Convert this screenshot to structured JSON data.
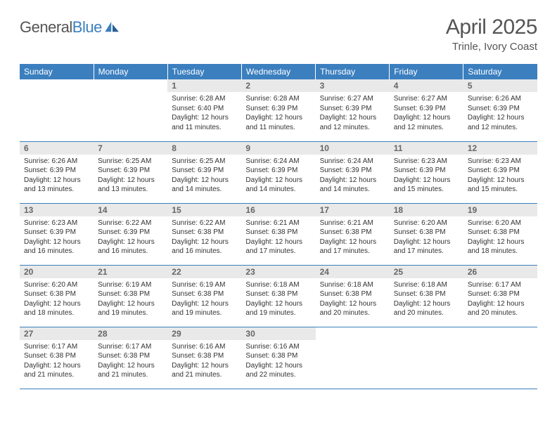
{
  "logo": {
    "general": "General",
    "blue": "Blue"
  },
  "title": "April 2025",
  "location": "Trinle, Ivory Coast",
  "columns": [
    "Sunday",
    "Monday",
    "Tuesday",
    "Wednesday",
    "Thursday",
    "Friday",
    "Saturday"
  ],
  "colors": {
    "header_bg": "#3b7fbf",
    "header_fg": "#ffffff",
    "daynum_bg": "#e9e9e9",
    "daynum_fg": "#666666",
    "border": "#3b7fbf",
    "text": "#333333",
    "title": "#555555",
    "page_bg": "#ffffff"
  },
  "fonts": {
    "title_size": 30,
    "location_size": 15,
    "header_size": 12,
    "daynum_size": 12,
    "body_size": 10
  },
  "weeks": [
    [
      {
        "n": "",
        "sr": "",
        "ss": "",
        "dl": ""
      },
      {
        "n": "",
        "sr": "",
        "ss": "",
        "dl": ""
      },
      {
        "n": "1",
        "sr": "Sunrise: 6:28 AM",
        "ss": "Sunset: 6:40 PM",
        "dl": "Daylight: 12 hours and 11 minutes."
      },
      {
        "n": "2",
        "sr": "Sunrise: 6:28 AM",
        "ss": "Sunset: 6:39 PM",
        "dl": "Daylight: 12 hours and 11 minutes."
      },
      {
        "n": "3",
        "sr": "Sunrise: 6:27 AM",
        "ss": "Sunset: 6:39 PM",
        "dl": "Daylight: 12 hours and 12 minutes."
      },
      {
        "n": "4",
        "sr": "Sunrise: 6:27 AM",
        "ss": "Sunset: 6:39 PM",
        "dl": "Daylight: 12 hours and 12 minutes."
      },
      {
        "n": "5",
        "sr": "Sunrise: 6:26 AM",
        "ss": "Sunset: 6:39 PM",
        "dl": "Daylight: 12 hours and 12 minutes."
      }
    ],
    [
      {
        "n": "6",
        "sr": "Sunrise: 6:26 AM",
        "ss": "Sunset: 6:39 PM",
        "dl": "Daylight: 12 hours and 13 minutes."
      },
      {
        "n": "7",
        "sr": "Sunrise: 6:25 AM",
        "ss": "Sunset: 6:39 PM",
        "dl": "Daylight: 12 hours and 13 minutes."
      },
      {
        "n": "8",
        "sr": "Sunrise: 6:25 AM",
        "ss": "Sunset: 6:39 PM",
        "dl": "Daylight: 12 hours and 14 minutes."
      },
      {
        "n": "9",
        "sr": "Sunrise: 6:24 AM",
        "ss": "Sunset: 6:39 PM",
        "dl": "Daylight: 12 hours and 14 minutes."
      },
      {
        "n": "10",
        "sr": "Sunrise: 6:24 AM",
        "ss": "Sunset: 6:39 PM",
        "dl": "Daylight: 12 hours and 14 minutes."
      },
      {
        "n": "11",
        "sr": "Sunrise: 6:23 AM",
        "ss": "Sunset: 6:39 PM",
        "dl": "Daylight: 12 hours and 15 minutes."
      },
      {
        "n": "12",
        "sr": "Sunrise: 6:23 AM",
        "ss": "Sunset: 6:39 PM",
        "dl": "Daylight: 12 hours and 15 minutes."
      }
    ],
    [
      {
        "n": "13",
        "sr": "Sunrise: 6:23 AM",
        "ss": "Sunset: 6:39 PM",
        "dl": "Daylight: 12 hours and 16 minutes."
      },
      {
        "n": "14",
        "sr": "Sunrise: 6:22 AM",
        "ss": "Sunset: 6:39 PM",
        "dl": "Daylight: 12 hours and 16 minutes."
      },
      {
        "n": "15",
        "sr": "Sunrise: 6:22 AM",
        "ss": "Sunset: 6:38 PM",
        "dl": "Daylight: 12 hours and 16 minutes."
      },
      {
        "n": "16",
        "sr": "Sunrise: 6:21 AM",
        "ss": "Sunset: 6:38 PM",
        "dl": "Daylight: 12 hours and 17 minutes."
      },
      {
        "n": "17",
        "sr": "Sunrise: 6:21 AM",
        "ss": "Sunset: 6:38 PM",
        "dl": "Daylight: 12 hours and 17 minutes."
      },
      {
        "n": "18",
        "sr": "Sunrise: 6:20 AM",
        "ss": "Sunset: 6:38 PM",
        "dl": "Daylight: 12 hours and 17 minutes."
      },
      {
        "n": "19",
        "sr": "Sunrise: 6:20 AM",
        "ss": "Sunset: 6:38 PM",
        "dl": "Daylight: 12 hours and 18 minutes."
      }
    ],
    [
      {
        "n": "20",
        "sr": "Sunrise: 6:20 AM",
        "ss": "Sunset: 6:38 PM",
        "dl": "Daylight: 12 hours and 18 minutes."
      },
      {
        "n": "21",
        "sr": "Sunrise: 6:19 AM",
        "ss": "Sunset: 6:38 PM",
        "dl": "Daylight: 12 hours and 19 minutes."
      },
      {
        "n": "22",
        "sr": "Sunrise: 6:19 AM",
        "ss": "Sunset: 6:38 PM",
        "dl": "Daylight: 12 hours and 19 minutes."
      },
      {
        "n": "23",
        "sr": "Sunrise: 6:18 AM",
        "ss": "Sunset: 6:38 PM",
        "dl": "Daylight: 12 hours and 19 minutes."
      },
      {
        "n": "24",
        "sr": "Sunrise: 6:18 AM",
        "ss": "Sunset: 6:38 PM",
        "dl": "Daylight: 12 hours and 20 minutes."
      },
      {
        "n": "25",
        "sr": "Sunrise: 6:18 AM",
        "ss": "Sunset: 6:38 PM",
        "dl": "Daylight: 12 hours and 20 minutes."
      },
      {
        "n": "26",
        "sr": "Sunrise: 6:17 AM",
        "ss": "Sunset: 6:38 PM",
        "dl": "Daylight: 12 hours and 20 minutes."
      }
    ],
    [
      {
        "n": "27",
        "sr": "Sunrise: 6:17 AM",
        "ss": "Sunset: 6:38 PM",
        "dl": "Daylight: 12 hours and 21 minutes."
      },
      {
        "n": "28",
        "sr": "Sunrise: 6:17 AM",
        "ss": "Sunset: 6:38 PM",
        "dl": "Daylight: 12 hours and 21 minutes."
      },
      {
        "n": "29",
        "sr": "Sunrise: 6:16 AM",
        "ss": "Sunset: 6:38 PM",
        "dl": "Daylight: 12 hours and 21 minutes."
      },
      {
        "n": "30",
        "sr": "Sunrise: 6:16 AM",
        "ss": "Sunset: 6:38 PM",
        "dl": "Daylight: 12 hours and 22 minutes."
      },
      {
        "n": "",
        "sr": "",
        "ss": "",
        "dl": ""
      },
      {
        "n": "",
        "sr": "",
        "ss": "",
        "dl": ""
      },
      {
        "n": "",
        "sr": "",
        "ss": "",
        "dl": ""
      }
    ]
  ]
}
